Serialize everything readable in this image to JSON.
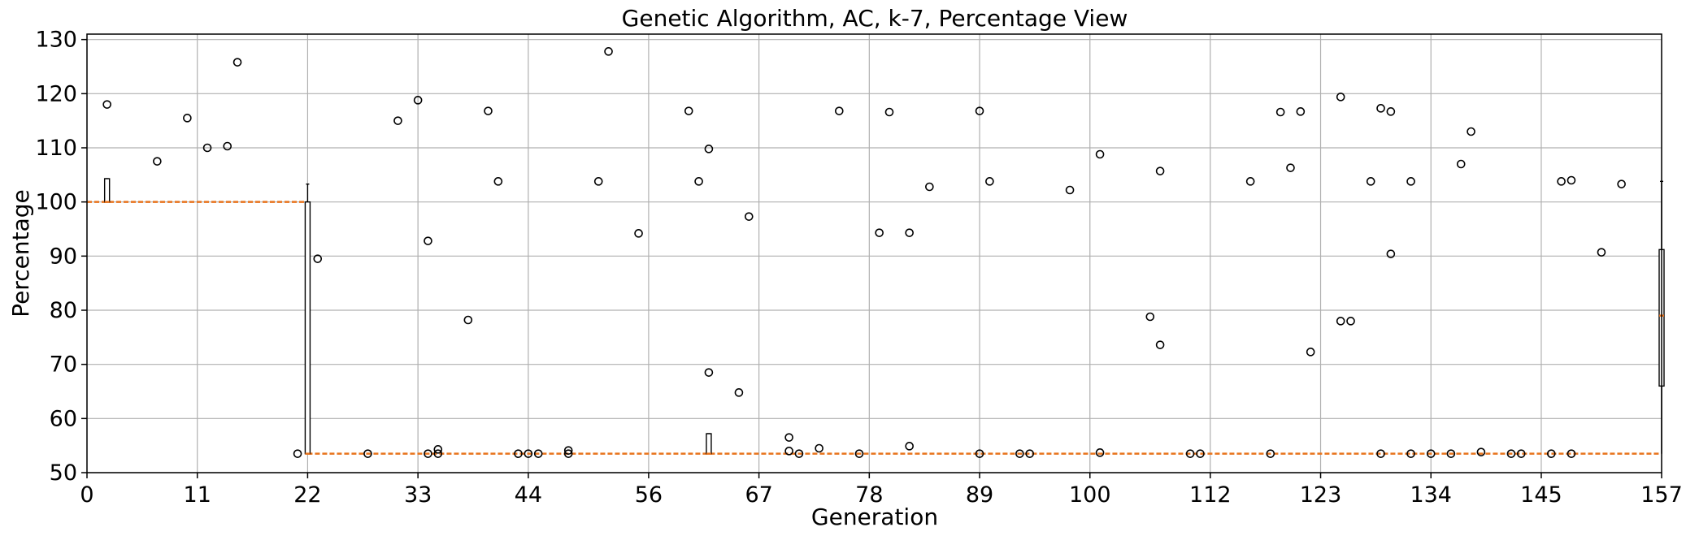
{
  "chart_data": {
    "type": "box",
    "title": "Genetic Algorithm, AC, k-7, Percentage View",
    "xlabel": "Generation",
    "ylabel": "Percentage",
    "xlim": [
      0,
      157
    ],
    "ylim": [
      50,
      131
    ],
    "x_ticks": [
      0,
      11,
      22,
      33,
      44,
      56,
      67,
      78,
      89,
      100,
      112,
      123,
      134,
      145,
      157
    ],
    "y_ticks": [
      50,
      60,
      70,
      80,
      90,
      100,
      110,
      120,
      130
    ],
    "grid": true,
    "median_line": {
      "segments": [
        {
          "x_start": 0,
          "x_end": 22,
          "value": 100.0
        },
        {
          "x_start": 22,
          "x_end": 157,
          "value": 53.5
        }
      ]
    },
    "boxes": [
      {
        "x": 2,
        "q1": 100,
        "q3": 104.3,
        "median": 100,
        "whisker_low": 100,
        "whisker_high": 104.3
      },
      {
        "x": 22,
        "q1": 53.5,
        "q3": 100,
        "median": 53.5,
        "whisker_low": 53.5,
        "whisker_high": 103.3
      },
      {
        "x": 62,
        "q1": 53.5,
        "q3": 57.2,
        "median": 53.5,
        "whisker_low": 53.5,
        "whisker_high": 57.2
      },
      {
        "x": 157,
        "q1": 66,
        "q3": 91.2,
        "median": 79,
        "whisker_low": 53.5,
        "whisker_high": 103.8
      }
    ],
    "fliers": [
      [
        2,
        118
      ],
      [
        7,
        107.5
      ],
      [
        10,
        115.5
      ],
      [
        12,
        110
      ],
      [
        14,
        110.3
      ],
      [
        15,
        125.8
      ],
      [
        21,
        53.5
      ],
      [
        23,
        89.5
      ],
      [
        28,
        53.5
      ],
      [
        31,
        115
      ],
      [
        33,
        118.8
      ],
      [
        34,
        92.8
      ],
      [
        34,
        53.5
      ],
      [
        35,
        54.3
      ],
      [
        35,
        53.5
      ],
      [
        38,
        78.2
      ],
      [
        40,
        116.8
      ],
      [
        41,
        103.8
      ],
      [
        43,
        53.5
      ],
      [
        44,
        53.5
      ],
      [
        45,
        53.5
      ],
      [
        48,
        54.1
      ],
      [
        48,
        53.5
      ],
      [
        51,
        103.8
      ],
      [
        52,
        127.8
      ],
      [
        55,
        94.2
      ],
      [
        60,
        116.8
      ],
      [
        61,
        103.8
      ],
      [
        62,
        109.8
      ],
      [
        62,
        68.5
      ],
      [
        65,
        64.8
      ],
      [
        66,
        97.3
      ],
      [
        70,
        56.5
      ],
      [
        70,
        54
      ],
      [
        71,
        53.5
      ],
      [
        73,
        54.5
      ],
      [
        75,
        116.8
      ],
      [
        77,
        53.5
      ],
      [
        79,
        94.3
      ],
      [
        80,
        116.6
      ],
      [
        82,
        94.3
      ],
      [
        82,
        54.9
      ],
      [
        84,
        102.8
      ],
      [
        89,
        116.8
      ],
      [
        89,
        53.5
      ],
      [
        90,
        103.8
      ],
      [
        93,
        53.5
      ],
      [
        94,
        53.5
      ],
      [
        98,
        102.2
      ],
      [
        101,
        108.8
      ],
      [
        101,
        53.7
      ],
      [
        106,
        78.8
      ],
      [
        107,
        105.7
      ],
      [
        107,
        73.6
      ],
      [
        110,
        53.5
      ],
      [
        111,
        53.5
      ],
      [
        116,
        103.8
      ],
      [
        118,
        53.5
      ],
      [
        119,
        116.6
      ],
      [
        120,
        106.3
      ],
      [
        121,
        116.7
      ],
      [
        122,
        72.3
      ],
      [
        125,
        119.4
      ],
      [
        125,
        78
      ],
      [
        126,
        78
      ],
      [
        128,
        103.8
      ],
      [
        129,
        117.3
      ],
      [
        129,
        53.5
      ],
      [
        130,
        116.7
      ],
      [
        130,
        90.4
      ],
      [
        132,
        103.8
      ],
      [
        132,
        53.5
      ],
      [
        134,
        53.5
      ],
      [
        136,
        53.5
      ],
      [
        137,
        107
      ],
      [
        138,
        113
      ],
      [
        139,
        53.8
      ],
      [
        142,
        53.5
      ],
      [
        143,
        53.5
      ],
      [
        146,
        53.5
      ],
      [
        147,
        103.8
      ],
      [
        148,
        104
      ],
      [
        148,
        53.5
      ],
      [
        151,
        90.7
      ],
      [
        153,
        103.3
      ]
    ]
  }
}
